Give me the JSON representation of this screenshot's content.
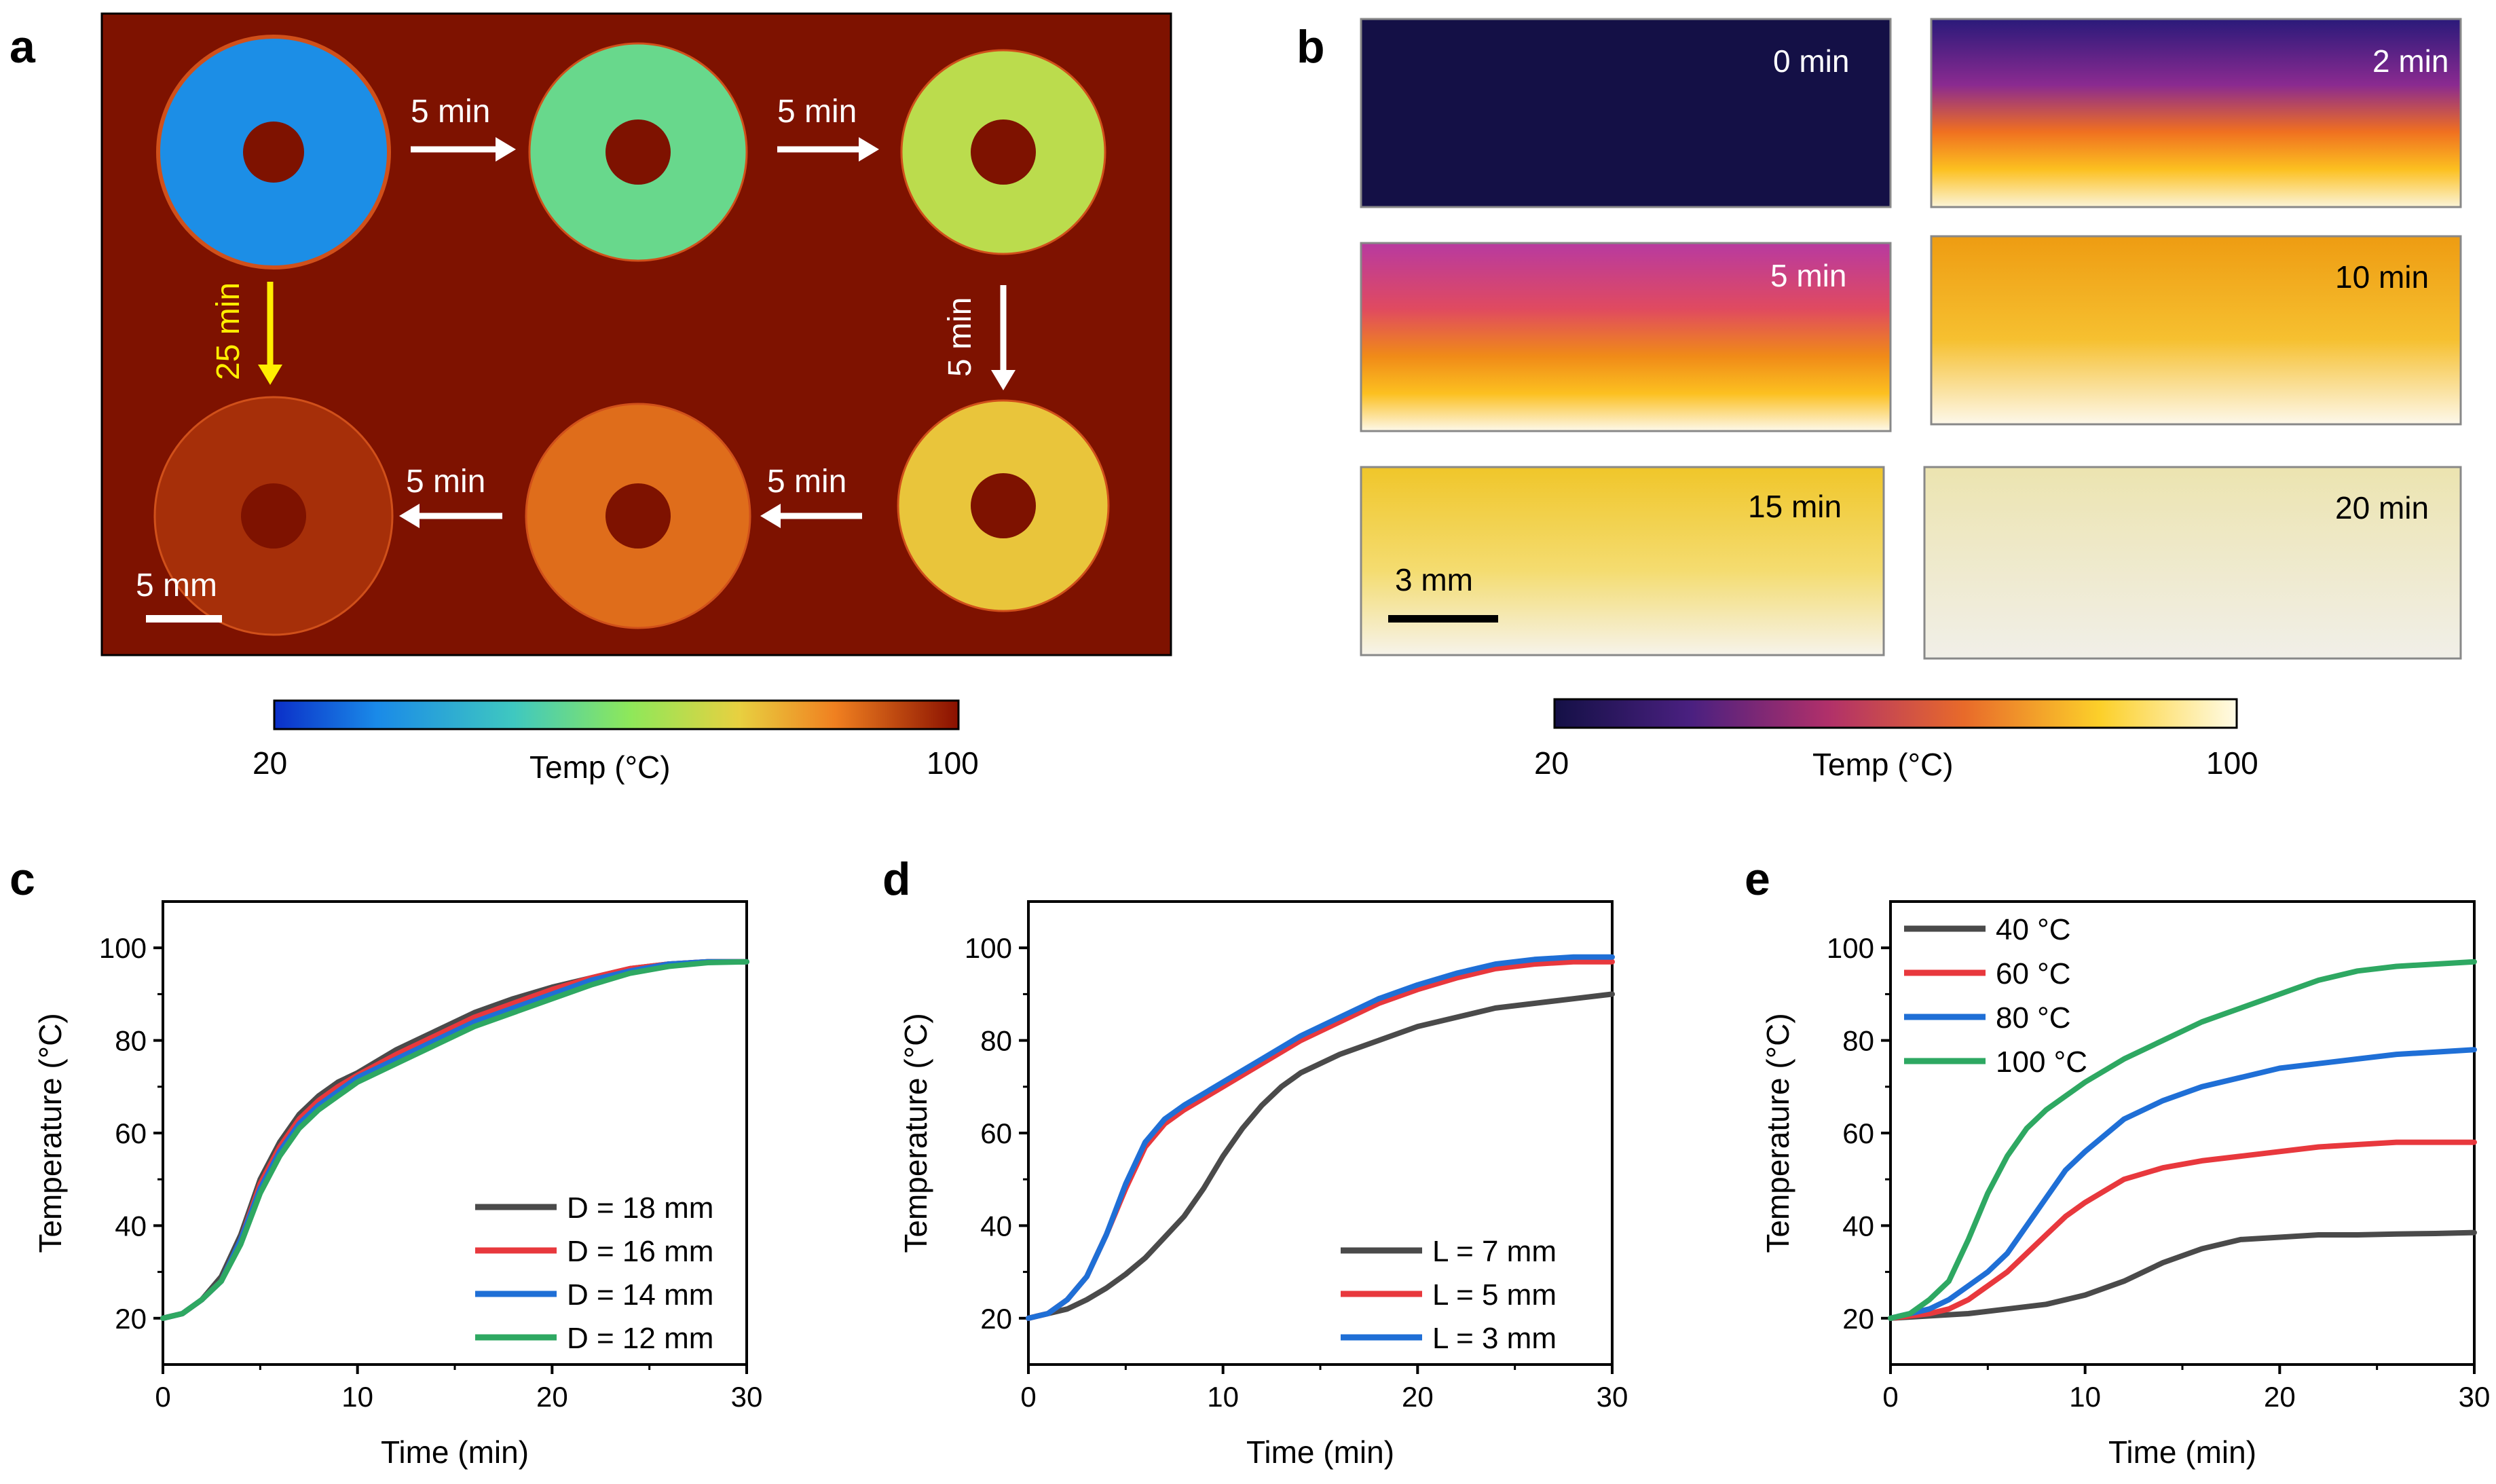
{
  "panels": {
    "a": {
      "letter": "a",
      "arrows": [
        "5 min",
        "5 min",
        "5 min",
        "5 min",
        "5 min"
      ],
      "arrow_yellow": "25 min",
      "scale_bar": "5 mm",
      "colorbar": {
        "min": "20",
        "max": "100",
        "title": "Temp (°C)"
      },
      "ring_temps_c": [
        33,
        55,
        68,
        76,
        88,
        96
      ]
    },
    "b": {
      "letter": "b",
      "frames": [
        "0 min",
        "2 min",
        "5 min",
        "10 min",
        "15 min",
        "20 min"
      ],
      "scale_bar": "3 mm",
      "colorbar": {
        "min": "20",
        "max": "100",
        "title": "Temp (°C)"
      }
    }
  },
  "colors": {
    "jet_bg": "#7e1200",
    "series_dark": "#4a4a4a",
    "series_red": "#e8383d",
    "series_blue": "#1f6fd6",
    "series_green": "#2ea862"
  },
  "chart_data": [
    {
      "id": "c",
      "type": "line",
      "letter": "c",
      "xlabel": "Time (min)",
      "ylabel": "Temperature (°C)",
      "xlim": [
        0,
        30
      ],
      "ylim": [
        10,
        110
      ],
      "xticks": [
        0,
        10,
        20,
        30
      ],
      "yticks": [
        20,
        40,
        60,
        80,
        100
      ],
      "legend_position": "bottom-right",
      "series": [
        {
          "name": "D = 18 mm",
          "color": "#4a4a4a",
          "x": [
            0,
            1,
            2,
            3,
            4,
            5,
            6,
            7,
            8,
            9,
            10,
            12,
            14,
            16,
            18,
            20,
            22,
            24,
            26,
            28,
            30
          ],
          "y": [
            20,
            21,
            24,
            29,
            38,
            50,
            58,
            64,
            68,
            71,
            73,
            78,
            82,
            86,
            89,
            91.5,
            93.5,
            95.5,
            96.5,
            97,
            97
          ]
        },
        {
          "name": "D = 16 mm",
          "color": "#e8383d",
          "x": [
            0,
            1,
            2,
            3,
            4,
            5,
            6,
            7,
            8,
            9,
            10,
            12,
            14,
            16,
            18,
            20,
            22,
            24,
            26,
            28,
            30
          ],
          "y": [
            20,
            21,
            24,
            28,
            37,
            49,
            57,
            63,
            67,
            70,
            72.5,
            77,
            81,
            85,
            88,
            91,
            93.5,
            95.5,
            96.5,
            97,
            97
          ]
        },
        {
          "name": "D = 14 mm",
          "color": "#1f6fd6",
          "x": [
            0,
            1,
            2,
            3,
            4,
            5,
            6,
            7,
            8,
            9,
            10,
            12,
            14,
            16,
            18,
            20,
            22,
            24,
            26,
            28,
            30
          ],
          "y": [
            20,
            21,
            24,
            28,
            37,
            48,
            56,
            62,
            66,
            69,
            72,
            76,
            80,
            84,
            87,
            90,
            93,
            95,
            96.5,
            97,
            97
          ]
        },
        {
          "name": "D = 12 mm",
          "color": "#2ea862",
          "x": [
            0,
            1,
            2,
            3,
            4,
            5,
            6,
            7,
            8,
            9,
            10,
            12,
            14,
            16,
            18,
            20,
            22,
            24,
            26,
            28,
            30
          ],
          "y": [
            20,
            21,
            24,
            28,
            36,
            47,
            55,
            61,
            65,
            68,
            71,
            75,
            79,
            83,
            86,
            89,
            92,
            94.5,
            96,
            96.8,
            97
          ]
        }
      ]
    },
    {
      "id": "d",
      "type": "line",
      "letter": "d",
      "xlabel": "Time (min)",
      "ylabel": "Temperature (°C)",
      "xlim": [
        0,
        30
      ],
      "ylim": [
        10,
        110
      ],
      "xticks": [
        0,
        10,
        20,
        30
      ],
      "yticks": [
        20,
        40,
        60,
        80,
        100
      ],
      "legend_position": "bottom-right",
      "series": [
        {
          "name": "L = 7 mm",
          "color": "#4a4a4a",
          "x": [
            0,
            1,
            2,
            3,
            4,
            5,
            6,
            7,
            8,
            9,
            10,
            11,
            12,
            13,
            14,
            16,
            18,
            20,
            22,
            24,
            26,
            28,
            30
          ],
          "y": [
            20,
            21,
            22,
            24,
            26.5,
            29.5,
            33,
            37.5,
            42,
            48,
            55,
            61,
            66,
            70,
            73,
            77,
            80,
            83,
            85,
            87,
            88,
            89,
            90
          ]
        },
        {
          "name": "L = 5 mm",
          "color": "#e8383d",
          "x": [
            0,
            1,
            2,
            3,
            4,
            5,
            6,
            7,
            8,
            10,
            12,
            14,
            16,
            18,
            20,
            22,
            24,
            26,
            28,
            30
          ],
          "y": [
            20,
            21,
            24,
            29,
            38,
            48,
            57,
            62,
            65,
            70,
            75,
            80,
            84,
            88,
            91,
            93.5,
            95.5,
            96.5,
            97,
            97
          ]
        },
        {
          "name": "L = 3 mm",
          "color": "#1f6fd6",
          "x": [
            0,
            1,
            2,
            3,
            4,
            5,
            6,
            7,
            8,
            10,
            12,
            14,
            16,
            18,
            20,
            22,
            24,
            26,
            28,
            30
          ],
          "y": [
            20,
            21,
            24,
            29,
            38,
            49,
            58,
            63,
            66,
            71,
            76,
            81,
            85,
            89,
            92,
            94.5,
            96.5,
            97.5,
            98,
            98
          ]
        }
      ]
    },
    {
      "id": "e",
      "type": "line",
      "letter": "e",
      "xlabel": "Time (min)",
      "ylabel": "Temperature (°C)",
      "xlim": [
        0,
        30
      ],
      "ylim": [
        10,
        110
      ],
      "xticks": [
        0,
        10,
        20,
        30
      ],
      "yticks": [
        20,
        40,
        60,
        80,
        100
      ],
      "legend_position": "top-left",
      "series": [
        {
          "name": "40 °C",
          "color": "#4a4a4a",
          "x": [
            0,
            2,
            4,
            6,
            8,
            10,
            12,
            14,
            16,
            18,
            20,
            22,
            24,
            26,
            28,
            30
          ],
          "y": [
            20,
            20.5,
            21,
            22,
            23,
            25,
            28,
            32,
            35,
            37,
            37.5,
            38,
            38,
            38.2,
            38.3,
            38.5
          ]
        },
        {
          "name": "60 °C",
          "color": "#e8383d",
          "x": [
            0,
            1,
            2,
            3,
            4,
            5,
            6,
            7,
            8,
            9,
            10,
            12,
            14,
            16,
            18,
            20,
            22,
            24,
            26,
            28,
            30
          ],
          "y": [
            20,
            20.5,
            21,
            22,
            24,
            27,
            30,
            34,
            38,
            42,
            45,
            50,
            52.5,
            54,
            55,
            56,
            57,
            57.5,
            58,
            58,
            58
          ]
        },
        {
          "name": "80 °C",
          "color": "#1f6fd6",
          "x": [
            0,
            1,
            2,
            3,
            4,
            5,
            6,
            7,
            8,
            9,
            10,
            12,
            14,
            16,
            18,
            20,
            22,
            24,
            26,
            28,
            30
          ],
          "y": [
            20,
            21,
            22,
            24,
            27,
            30,
            34,
            40,
            46,
            52,
            56,
            63,
            67,
            70,
            72,
            74,
            75,
            76,
            77,
            77.5,
            78
          ]
        },
        {
          "name": "100 °C",
          "color": "#2ea862",
          "x": [
            0,
            1,
            2,
            3,
            4,
            5,
            6,
            7,
            8,
            9,
            10,
            12,
            14,
            16,
            18,
            20,
            22,
            24,
            26,
            28,
            30
          ],
          "y": [
            20,
            21,
            24,
            28,
            37,
            47,
            55,
            61,
            65,
            68,
            71,
            76,
            80,
            84,
            87,
            90,
            93,
            95,
            96,
            96.5,
            97
          ]
        }
      ]
    }
  ]
}
